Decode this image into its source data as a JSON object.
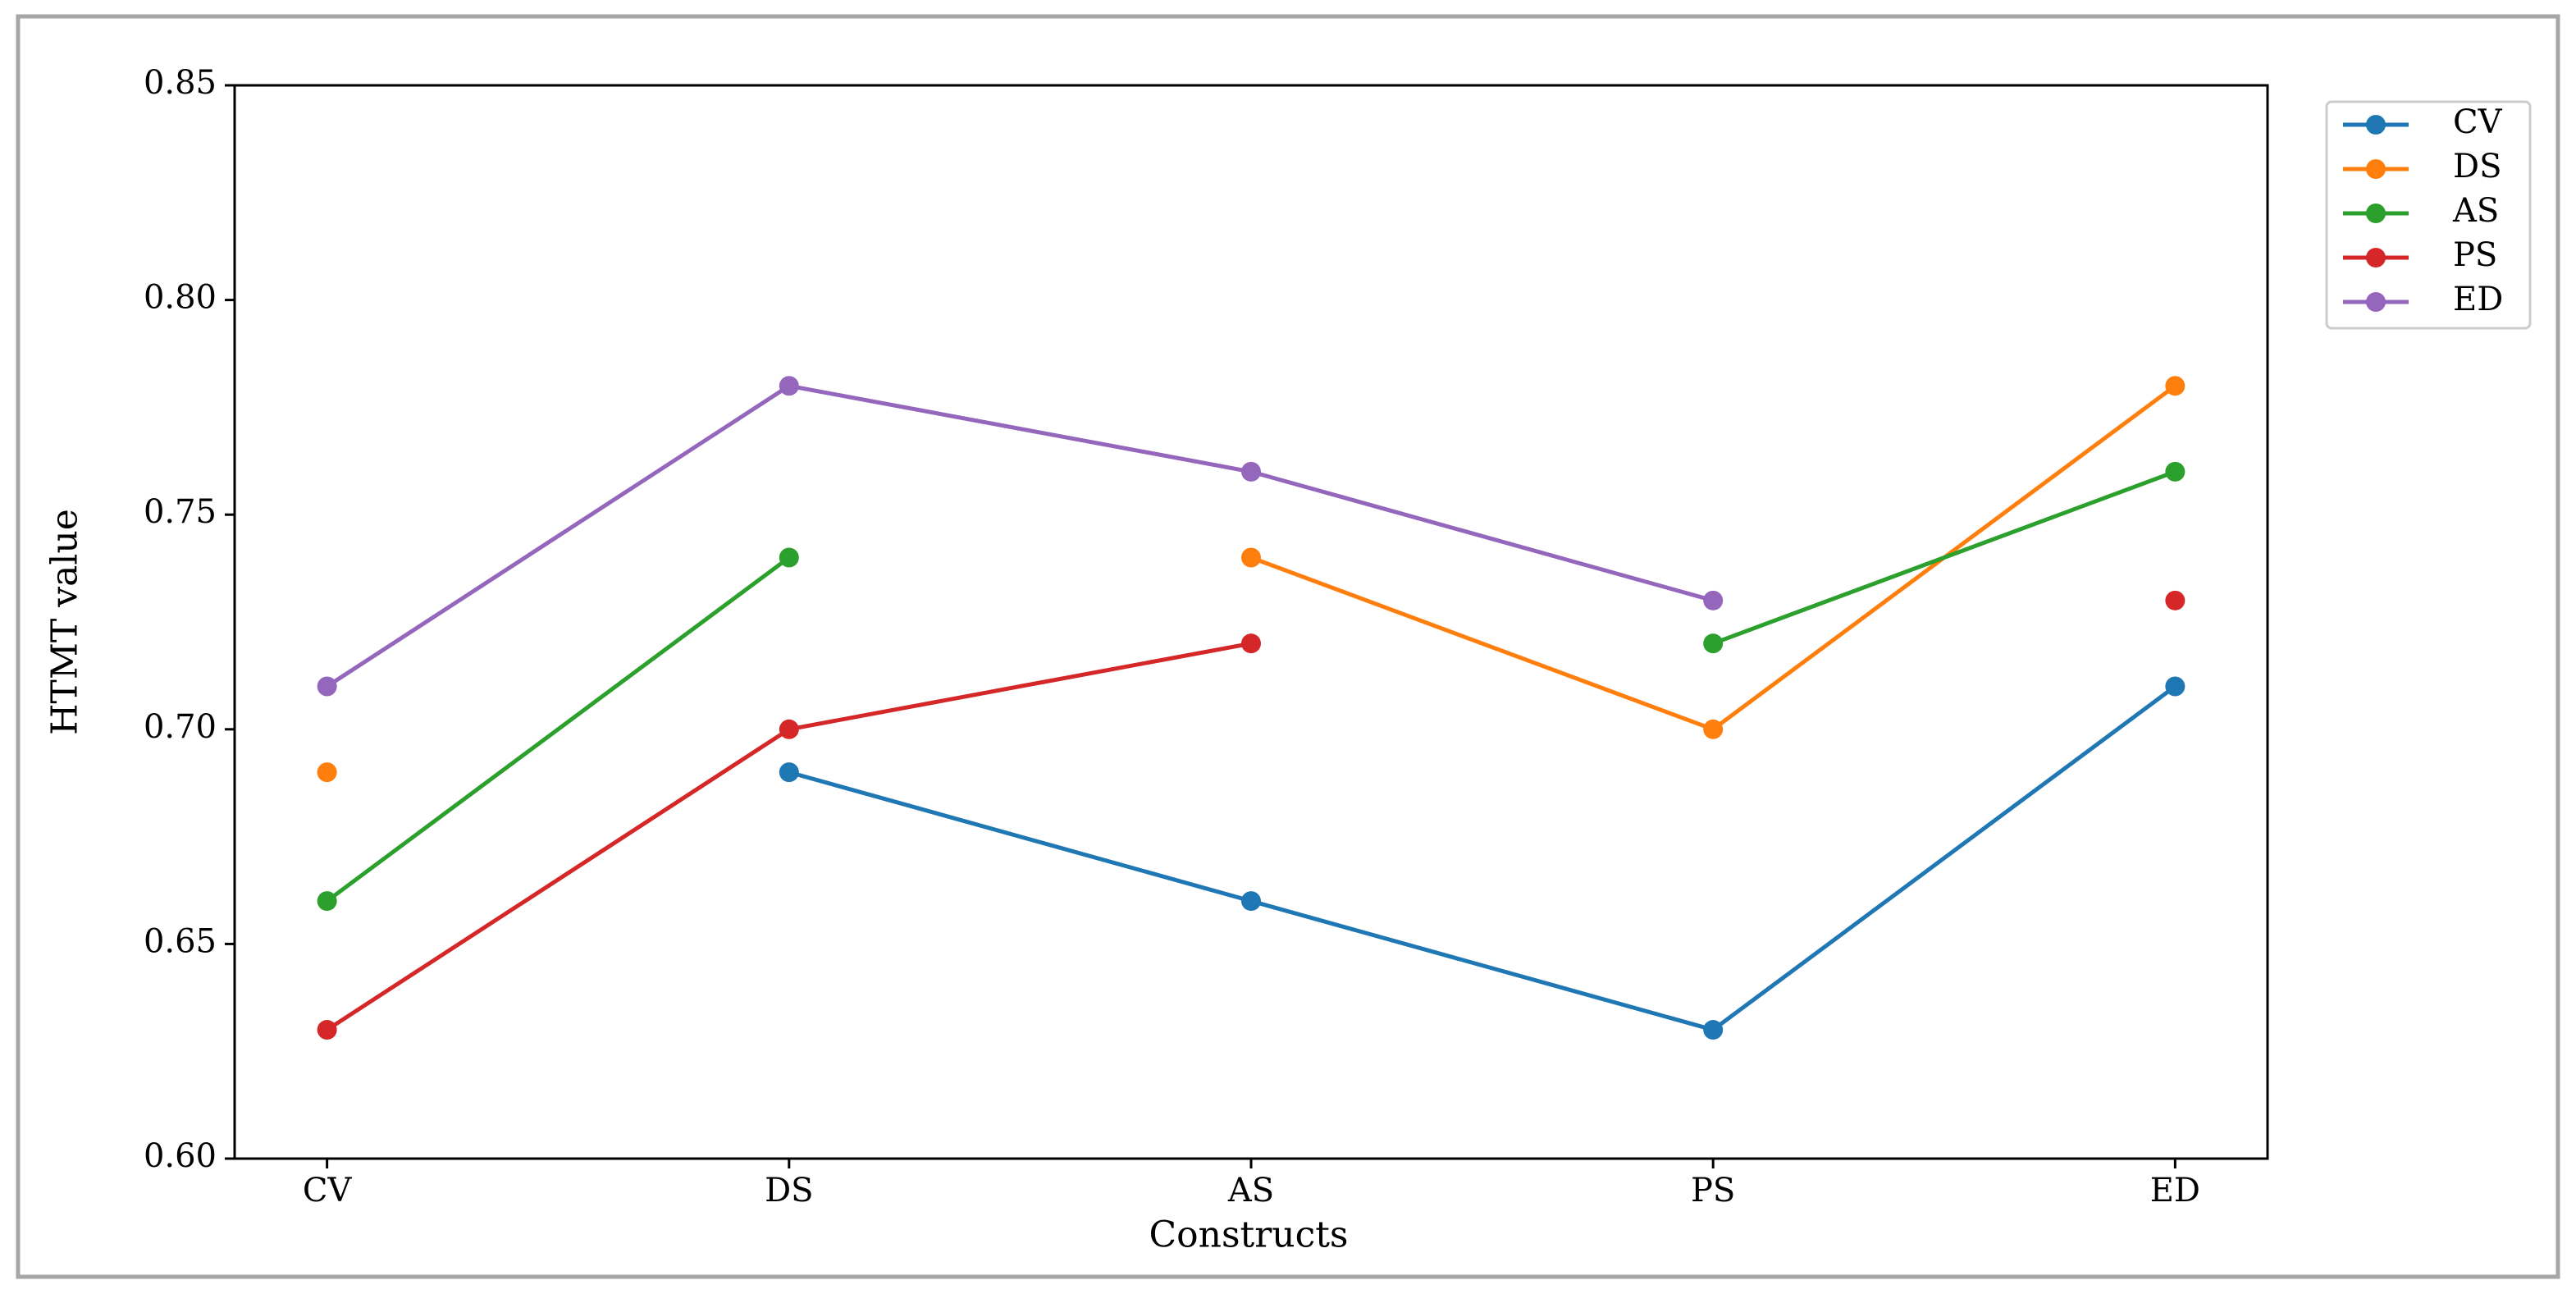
{
  "chart_data": {
    "type": "line",
    "x_label": "Constructs",
    "y_label": "HTMT value",
    "categories": [
      "CV",
      "DS",
      "AS",
      "PS",
      "ED"
    ],
    "series": [
      {
        "name": "CV",
        "color": "#1f77b4",
        "values": [
          null,
          0.69,
          0.66,
          0.63,
          0.71
        ]
      },
      {
        "name": "DS",
        "color": "#ff7f0e",
        "values": [
          0.69,
          null,
          0.74,
          0.7,
          0.78
        ]
      },
      {
        "name": "AS",
        "color": "#2ca02c",
        "values": [
          0.66,
          0.74,
          null,
          0.72,
          0.76
        ]
      },
      {
        "name": "PS",
        "color": "#d62728",
        "values": [
          0.63,
          0.7,
          0.72,
          null,
          0.73
        ]
      },
      {
        "name": "ED",
        "color": "#9467bd",
        "values": [
          0.71,
          0.78,
          0.76,
          0.73,
          null
        ]
      }
    ],
    "ylim": [
      0.6,
      0.85
    ],
    "yticks": [
      {
        "value": 0.6,
        "label": "0.60"
      },
      0.65,
      {
        "value": 0.7,
        "label": "0.70"
      },
      0.75,
      {
        "value": 0.8,
        "label": "0.80"
      },
      0.85
    ],
    "grid": false,
    "legend": "upper right outside"
  }
}
